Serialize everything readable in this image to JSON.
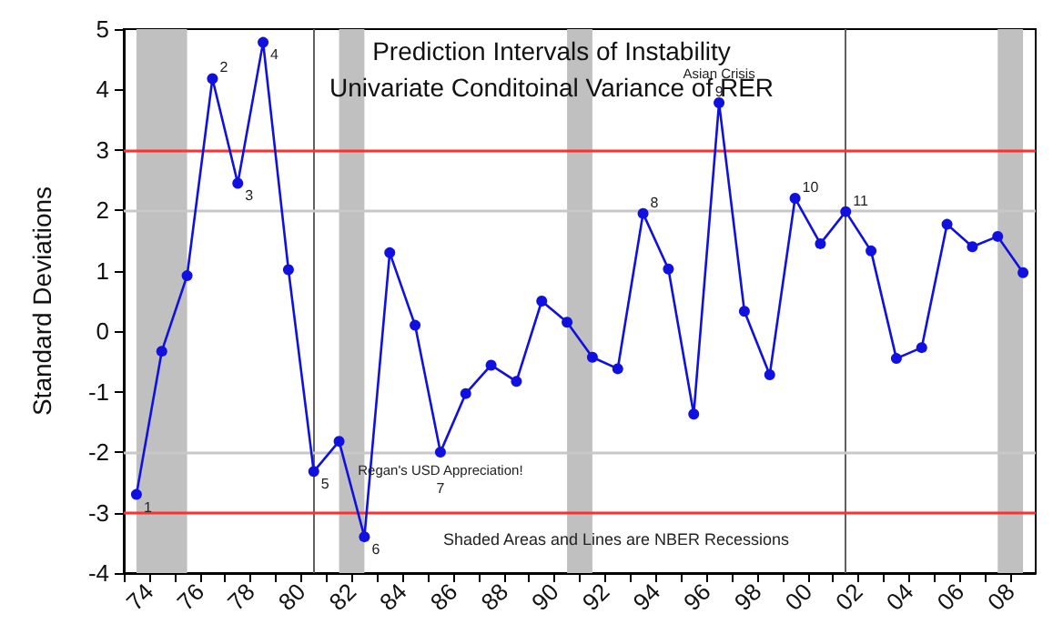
{
  "chart_data": {
    "type": "line",
    "title": "Prediction Intervals of Instability",
    "subtitle": "Univariate Conditoinal Variance of RER",
    "ylabel": "Standard Deviations",
    "x": [
      1973.5,
      1974.5,
      1975.5,
      1976.5,
      1977.5,
      1978.5,
      1979.5,
      1980.5,
      1981.5,
      1982.5,
      1983.5,
      1984.5,
      1985.5,
      1986.5,
      1987.5,
      1988.5,
      1989.5,
      1990.5,
      1991.5,
      1992.5,
      1993.5,
      1994.5,
      1995.5,
      1996.5,
      1997.5,
      1998.5,
      1999.5,
      2000.5,
      2001.5,
      2002.5,
      2003.5,
      2004.5,
      2005.5,
      2006.5,
      2007.5,
      2008.5
    ],
    "series": [
      {
        "color": "#1010e0",
        "values": [
          -2.7,
          -0.33,
          0.92,
          4.18,
          2.45,
          4.78,
          1.02,
          -2.32,
          -1.82,
          -3.4,
          1.3,
          0.1,
          -2.0,
          -1.03,
          -0.56,
          -0.83,
          0.5,
          0.15,
          -0.43,
          -0.62,
          1.95,
          1.03,
          -1.37,
          3.78,
          0.33,
          -0.72,
          2.2,
          1.45,
          1.98,
          1.33,
          -0.45,
          -0.27,
          1.77,
          1.4,
          1.57,
          0.97
        ]
      }
    ],
    "marker": "circle",
    "line_style": "solid",
    "xlim": [
      1973,
      2009
    ],
    "xticks": [
      {
        "value": 1973,
        "label": null
      },
      {
        "value": 1974,
        "label": "74"
      },
      {
        "value": 1975,
        "label": null
      },
      {
        "value": 1976,
        "label": "76"
      },
      {
        "value": 1977,
        "label": null
      },
      {
        "value": 1978,
        "label": "78"
      },
      {
        "value": 1979,
        "label": null
      },
      {
        "value": 1980,
        "label": "80"
      },
      {
        "value": 1981,
        "label": null
      },
      {
        "value": 1982,
        "label": "82"
      },
      {
        "value": 1983,
        "label": null
      },
      {
        "value": 1984,
        "label": "84"
      },
      {
        "value": 1985,
        "label": null
      },
      {
        "value": 1986,
        "label": "86"
      },
      {
        "value": 1987,
        "label": null
      },
      {
        "value": 1988,
        "label": "88"
      },
      {
        "value": 1989,
        "label": null
      },
      {
        "value": 1990,
        "label": "90"
      },
      {
        "value": 1991,
        "label": null
      },
      {
        "value": 1992,
        "label": "92"
      },
      {
        "value": 1993,
        "label": null
      },
      {
        "value": 1994,
        "label": "94"
      },
      {
        "value": 1995,
        "label": null
      },
      {
        "value": 1996,
        "label": "96"
      },
      {
        "value": 1997,
        "label": null
      },
      {
        "value": 1998,
        "label": "98"
      },
      {
        "value": 1999,
        "label": null
      },
      {
        "value": 2000,
        "label": "00"
      },
      {
        "value": 2001,
        "label": null
      },
      {
        "value": 2002,
        "label": "02"
      },
      {
        "value": 2003,
        "label": null
      },
      {
        "value": 2004,
        "label": "04"
      },
      {
        "value": 2005,
        "label": null
      },
      {
        "value": 2006,
        "label": "06"
      },
      {
        "value": 2007,
        "label": null
      },
      {
        "value": 2008,
        "label": "08"
      }
    ],
    "ylim": [
      -4,
      5
    ],
    "yticks": [
      -4,
      -3,
      -2,
      -1,
      0,
      1,
      2,
      3,
      4,
      5
    ],
    "bands": [
      {
        "axis": "x",
        "from": 1973.5,
        "to": 1975.5,
        "color": "#c0c0c0"
      },
      {
        "axis": "x",
        "from": 1981.5,
        "to": 1982.5,
        "color": "#c0c0c0"
      },
      {
        "axis": "x",
        "from": 1990.5,
        "to": 1991.5,
        "color": "#c0c0c0"
      },
      {
        "axis": "x",
        "from": 2007.5,
        "to": 2008.5,
        "color": "#c0c0c0"
      }
    ],
    "ref_lines": [
      {
        "axis": "x",
        "value": 1980.5,
        "color": "#606060"
      },
      {
        "axis": "x",
        "value": 2001.5,
        "color": "#606060"
      },
      {
        "axis": "y",
        "value": 3,
        "color": "#ff3030"
      },
      {
        "axis": "y",
        "value": -3,
        "color": "#ff3030"
      },
      {
        "axis": "y",
        "value": 2,
        "color": "#c8c8c8"
      },
      {
        "axis": "y",
        "value": -2,
        "color": "#c8c8c8"
      }
    ],
    "annotations": [
      {
        "text": "1",
        "x": 1973.5,
        "y": -2.7
      },
      {
        "text": "2",
        "x": 1976.5,
        "y": 4.18
      },
      {
        "text": "3",
        "x": 1977.5,
        "y": 2.45
      },
      {
        "text": "4",
        "x": 1978.5,
        "y": 4.78
      },
      {
        "text": "5",
        "x": 1980.5,
        "y": -2.32
      },
      {
        "text": "6",
        "x": 1982.5,
        "y": -3.4
      },
      {
        "text": "Regan's USD Appreciation!",
        "x": 1985.5,
        "y": -2.0
      },
      {
        "text": "7",
        "x": 1985.5,
        "y": -2.0
      },
      {
        "text": "8",
        "x": 1993.5,
        "y": 1.95
      },
      {
        "text": "Asian Crisis",
        "x": 1996.5,
        "y": 3.78
      },
      {
        "text": "9",
        "x": 1996.5,
        "y": 3.78
      },
      {
        "text": "10",
        "x": 1999.5,
        "y": 2.2
      },
      {
        "text": "11",
        "x": 2001.5,
        "y": 1.98
      },
      "Shaded Areas and Lines are NBER Recessions"
    ]
  }
}
